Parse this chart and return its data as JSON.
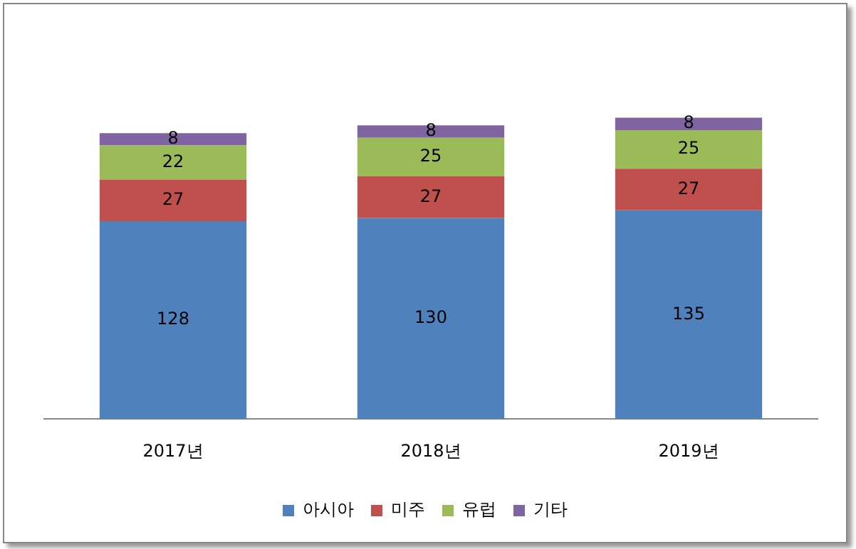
{
  "chart_data": {
    "type": "bar",
    "stacked": true,
    "data_labels": true,
    "grid": false,
    "legend": "bottom",
    "tick_labels": "x",
    "categories": [
      "2017년",
      "2018년",
      "2019년"
    ],
    "series": [
      {
        "name": "아시아",
        "color": "#4f81bd",
        "values": [
          128,
          130,
          135
        ]
      },
      {
        "name": "미주",
        "color": "#c0504d",
        "values": [
          27,
          27,
          27
        ]
      },
      {
        "name": "유럽",
        "color": "#9bbb59",
        "values": [
          22,
          25,
          25
        ]
      },
      {
        "name": "기타",
        "color": "#8064a2",
        "values": [
          8,
          8,
          8
        ]
      }
    ]
  }
}
